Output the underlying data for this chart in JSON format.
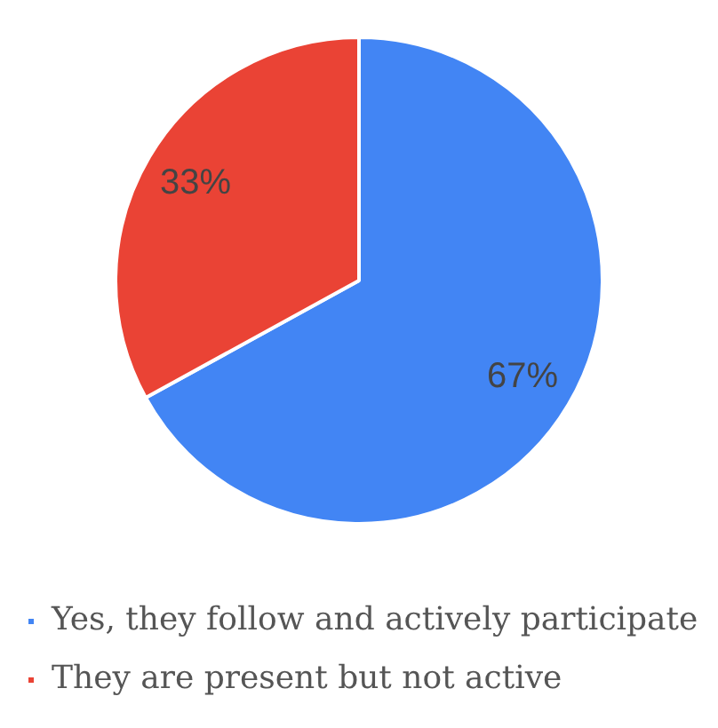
{
  "chart_data": {
    "type": "pie",
    "categories": [
      "Yes, they follow and actively participate",
      "They are present but not active"
    ],
    "values": [
      67,
      33
    ],
    "colors": [
      "#4285f4",
      "#ea4335"
    ],
    "value_labels": [
      "67%",
      "33%"
    ],
    "legend": "bottom"
  }
}
